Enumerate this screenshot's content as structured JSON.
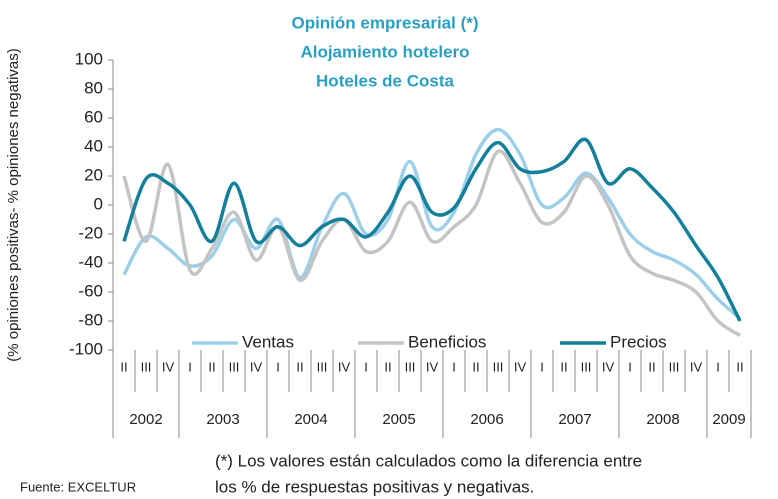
{
  "chart_data": {
    "type": "line",
    "title": [
      "Opinión empresarial (*)",
      "Alojamiento hotelero",
      "Hoteles de Costa"
    ],
    "y_label": "(% opiniones positivas- % opiniones negativas)",
    "categories": [
      "II",
      "III",
      "IV",
      "I",
      "II",
      "III",
      "IV",
      "I",
      "II",
      "III",
      "IV",
      "I",
      "II",
      "III",
      "IV",
      "I",
      "II",
      "III",
      "IV",
      "I",
      "II",
      "III",
      "IV",
      "I",
      "II",
      "III",
      "IV",
      "I",
      "II"
    ],
    "year_labels": [
      "2002",
      "2003",
      "2004",
      "2005",
      "2006",
      "2007",
      "2008",
      "2009"
    ],
    "ylim": [
      -100,
      100
    ],
    "yticks": [
      -100,
      -80,
      -60,
      -40,
      -20,
      0,
      20,
      40,
      60,
      80,
      100
    ],
    "series": [
      {
        "name": "Ventas",
        "color": "#9dcfe8",
        "values": [
          -48,
          -22,
          -30,
          -42,
          -35,
          -10,
          -30,
          -10,
          -50,
          -15,
          8,
          -20,
          -10,
          30,
          -15,
          -5,
          35,
          52,
          35,
          0,
          5,
          22,
          5,
          -20,
          -32,
          -38,
          -48,
          -65,
          -78
        ]
      },
      {
        "name": "Beneficios",
        "color": "#c4c4c4",
        "values": [
          20,
          -25,
          28,
          -45,
          -30,
          -5,
          -38,
          -15,
          -52,
          -25,
          -10,
          -32,
          -25,
          2,
          -25,
          -15,
          0,
          37,
          15,
          -12,
          -5,
          20,
          0,
          -35,
          -47,
          -52,
          -60,
          -80,
          -90
        ]
      },
      {
        "name": "Precios",
        "color": "#137f9b",
        "values": [
          -25,
          18,
          15,
          0,
          -25,
          15,
          -25,
          -15,
          -28,
          -15,
          -10,
          -22,
          -5,
          20,
          -5,
          -2,
          25,
          43,
          25,
          23,
          30,
          45,
          15,
          25,
          12,
          -5,
          -28,
          -50,
          -80
        ]
      }
    ],
    "note": [
      "(*) Los valores están calculados como la diferencia entre",
      "los % de respuestas positivas y negativas."
    ],
    "source": "Fuente: EXCELTUR"
  }
}
